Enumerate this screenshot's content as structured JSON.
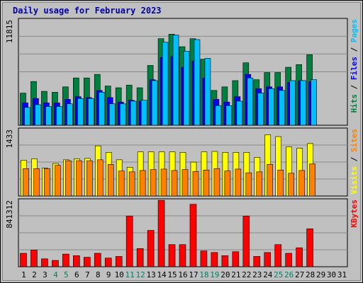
{
  "title": "Daily usage for February 2023",
  "days": [
    "1",
    "2",
    "3",
    "4",
    "5",
    "6",
    "7",
    "8",
    "9",
    "10",
    "11",
    "12",
    "13",
    "14",
    "15",
    "16",
    "17",
    "18",
    "19",
    "20",
    "21",
    "22",
    "23",
    "24",
    "25",
    "26",
    "27",
    "28",
    "29",
    "30",
    "31"
  ],
  "weekend_days": [
    4,
    5,
    11,
    12,
    18,
    19,
    25,
    26
  ],
  "colors": {
    "hits": "#008040",
    "files": "#0000ff",
    "pages": "#00c0ff",
    "visits": "#ffff00",
    "sites": "#ff8000",
    "kbytes": "#ff0000",
    "weekday_label": "#000000",
    "weekend_label": "#00805c",
    "panel_bg": "#c0c0c0",
    "grid": "#888888"
  },
  "chart_data": [
    {
      "type": "bar",
      "panel": "top",
      "ymax_label": "11815",
      "ylim": [
        0,
        11815
      ],
      "legend": [
        {
          "label": "Hits",
          "color": "#008040"
        },
        {
          "label": "Files",
          "color": "#0000ff"
        },
        {
          "label": "Pages",
          "color": "#00c0ff"
        }
      ],
      "series": [
        {
          "name": "Hits",
          "values": [
            3600,
            4900,
            3800,
            3700,
            4300,
            5300,
            5300,
            5700,
            4400,
            4200,
            4500,
            4200,
            6700,
            9700,
            10200,
            8800,
            9700,
            7400,
            3900,
            4300,
            5000,
            7000,
            5100,
            5900,
            5900,
            6500,
            6800,
            7900
          ]
        },
        {
          "name": "Files",
          "values": [
            2500,
            3000,
            2500,
            2500,
            2900,
            3200,
            3100,
            3900,
            3100,
            2600,
            2800,
            2700,
            5100,
            7600,
            7700,
            6500,
            7200,
            5300,
            2900,
            2600,
            3200,
            5700,
            4100,
            4300,
            4300,
            4800,
            5000,
            4900
          ]
        },
        {
          "name": "Pages",
          "values": [
            2000,
            2300,
            2100,
            2100,
            2400,
            3000,
            3000,
            3700,
            2400,
            2400,
            2700,
            2800,
            5000,
            9300,
            10100,
            8300,
            9600,
            7500,
            2200,
            2200,
            2700,
            5300,
            3600,
            4100,
            3900,
            5000,
            5000,
            5100
          ]
        }
      ]
    },
    {
      "type": "bar",
      "panel": "middle",
      "ymax_label": "1433",
      "ylim": [
        0,
        1433
      ],
      "legend": [
        {
          "label": "Visits",
          "color": "#ffff00"
        },
        {
          "label": "Sites",
          "color": "#ff8000"
        }
      ],
      "series": [
        {
          "name": "Visits",
          "values": [
            770,
            800,
            600,
            700,
            780,
            800,
            810,
            1080,
            940,
            780,
            620,
            950,
            950,
            950,
            950,
            940,
            730,
            950,
            960,
            940,
            940,
            940,
            830,
            1320,
            1280,
            1060,
            1030,
            1130
          ]
        },
        {
          "name": "Sites",
          "values": [
            590,
            590,
            590,
            660,
            760,
            760,
            760,
            780,
            680,
            540,
            520,
            550,
            570,
            580,
            550,
            570,
            530,
            560,
            590,
            540,
            580,
            500,
            520,
            680,
            560,
            490,
            550,
            690
          ]
        }
      ]
    },
    {
      "type": "bar",
      "panel": "bottom",
      "ymax_label": "841312",
      "ylim": [
        0,
        841312
      ],
      "legend": [
        {
          "label": "KBytes",
          "color": "#ff0000"
        }
      ],
      "series": [
        {
          "name": "KBytes",
          "values": [
            170000,
            210000,
            100000,
            80000,
            160000,
            140000,
            120000,
            170000,
            110000,
            130000,
            640000,
            230000,
            460000,
            840000,
            280000,
            280000,
            790000,
            200000,
            180000,
            140000,
            190000,
            640000,
            130000,
            180000,
            280000,
            170000,
            240000,
            480000
          ]
        }
      ]
    }
  ]
}
